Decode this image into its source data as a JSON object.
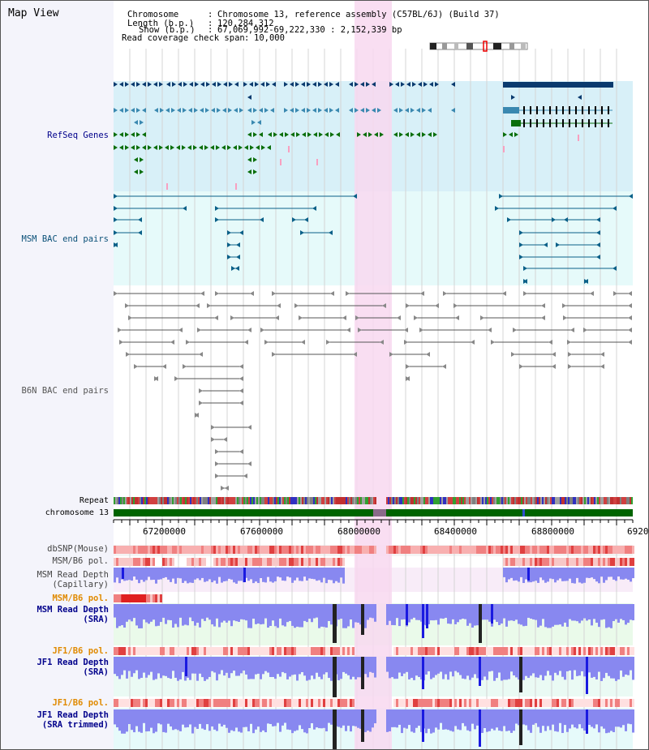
{
  "page_title": "Map View",
  "info": {
    "chromosome_label": "Chromosome",
    "chromosome_value": "Chromosome 13, reference assembly (C57BL/6J) (Build 37)",
    "length_label": "Length (b.p.)",
    "length_value": "120,284,312",
    "show_label": "Show (b.p.)",
    "show_value": "67,069,992-69,222,330 : 2,152,339 bp",
    "read_cov_label": "Read coverage check span",
    "read_cov_value": "10,000"
  },
  "tracks": {
    "refseq": "RefSeq Genes",
    "msm_bac": "MSM BAC end pairs",
    "b6n_bac": "B6N BAC end pairs",
    "repeat": "Repeat",
    "chromosome": "chromosome 13",
    "dbsnp": "dbSNP(Mouse)",
    "msm_b6_pol_1": "MSM/B6 pol.",
    "msm_depth_cap_1": "MSM Read Depth",
    "msm_depth_cap_2": "(Capillary)",
    "msm_b6_pol_2": "MSM/B6 pol.",
    "msm_depth_sra_1": "MSM Read Depth",
    "msm_depth_sra_2": "(SRA)",
    "jf1_b6_pol_1": "JF1/B6 pol.",
    "jf1_depth_sra_1": "JF1 Read Depth",
    "jf1_depth_sra_2": "(SRA)",
    "jf1_b6_pol_2": "JF1/B6 pol.",
    "jf1_depth_trim_1": "JF1 Read Depth",
    "jf1_depth_trim_2": "(SRA trimmed)"
  },
  "axis_ticks": [
    "67200000",
    "67600000",
    "68000000",
    "68400000",
    "68800000",
    "6920"
  ],
  "colors": {
    "refseq_bg": "#d8f0f8",
    "bac_bg": "#e6fafa",
    "highlight": "#f8d8f0",
    "refseq_dark": "#0a3a6e",
    "refseq_mid": "#3a88b0",
    "refseq_green": "#0a6e0a",
    "msm_bac": "#0a6088",
    "b6n_bac": "#555555",
    "chromosome": "#006400",
    "depth_blue": "#3a3aee",
    "pol_orange": "#e08a00",
    "label_blue": "#00008b"
  }
}
